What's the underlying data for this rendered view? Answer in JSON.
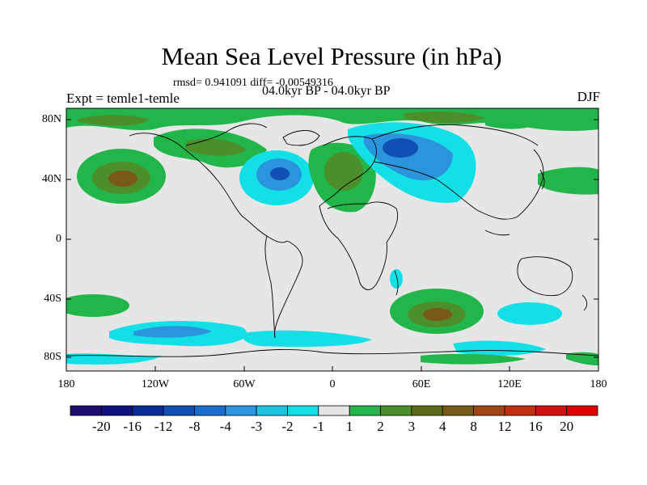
{
  "title": "Mean Sea Level Pressure (in hPa)",
  "stats_line": "rmsd= 0.941091 diff= -0.00549316",
  "experiment": "Expt = temle1-temle",
  "period": "04.0kyr BP - 04.0kyr BP",
  "season": "DJF",
  "lat_labels": [
    "80N",
    "40N",
    "0",
    "40S",
    "80S"
  ],
  "lon_labels": [
    "180",
    "120W",
    "60W",
    "0",
    "60E",
    "120E",
    "180"
  ],
  "colorbar": {
    "labels": [
      "-20",
      "-16",
      "-12",
      "-8",
      "-4",
      "-3",
      "-2",
      "-1",
      "1",
      "2",
      "3",
      "4",
      "8",
      "12",
      "16",
      "20"
    ],
    "colors": [
      "#1b0f6b",
      "#10137f",
      "#0b2c98",
      "#1050b4",
      "#1a6fcc",
      "#2a95dc",
      "#1dc3e0",
      "#13e0e6",
      "#e6e6e6",
      "#22b64a",
      "#4c8e2a",
      "#5c6b1a",
      "#7a5818",
      "#a04614",
      "#c22e0e",
      "#d11212",
      "#e00000"
    ]
  },
  "colors": {
    "land_neutral": "#e6e6e6",
    "coast": "#000000"
  }
}
